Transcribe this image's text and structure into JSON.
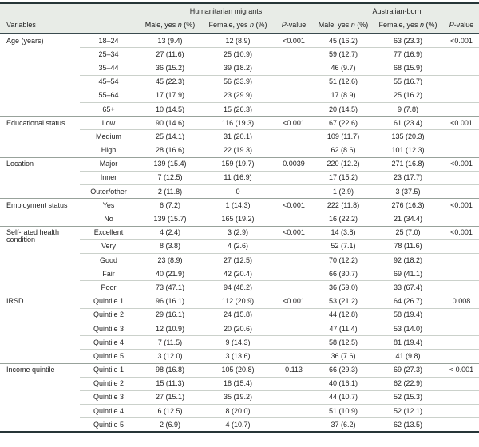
{
  "colors": {
    "header_bg": "#e8ece7",
    "rule_dark": "#263537",
    "rule_header_bottom": "#3a4a4e",
    "row_divider": "#cbd1cb",
    "group_divider": "#98a29b",
    "text": "#222222"
  },
  "table": {
    "variables_label": "Variables",
    "group_headers": [
      "Humanitarian migrants",
      "Australian-born"
    ],
    "sub_headers": [
      {
        "pre": "Male, yes ",
        "it": "n",
        "post": " (%)"
      },
      {
        "pre": "Female, yes ",
        "it": "n",
        "post": " (%)"
      },
      {
        "pre": "",
        "it": "P",
        "post": "-value"
      },
      {
        "pre": "Male, yes ",
        "it": "n",
        "post": " (%)"
      },
      {
        "pre": "Female, yes ",
        "it": "n",
        "post": " (%)"
      },
      {
        "pre": "",
        "it": "P",
        "post": "-value"
      }
    ],
    "groups": [
      {
        "variable": "Age (years)",
        "rows": [
          {
            "category": "18–24",
            "cells": [
              "13 (9.4)",
              "12 (8.9)",
              "<0.001",
              "45 (16.2)",
              "63 (23.3)",
              "<0.001"
            ]
          },
          {
            "category": "25–34",
            "cells": [
              "27 (11.6)",
              "25 (10.9)",
              "",
              "59 (12.7)",
              "77 (16.9)",
              ""
            ]
          },
          {
            "category": "35–44",
            "cells": [
              "36 (15.2)",
              "39 (18.2)",
              "",
              "46 (9.7)",
              "68 (15.9)",
              ""
            ]
          },
          {
            "category": "45–54",
            "cells": [
              "45 (22.3)",
              "56 (33.9)",
              "",
              "51 (12.6)",
              "55 (16.7)",
              ""
            ]
          },
          {
            "category": "55–64",
            "cells": [
              "17 (17.9)",
              "23 (29.9)",
              "",
              "17 (8.9)",
              "25 (16.2)",
              ""
            ]
          },
          {
            "category": "65+",
            "cells": [
              "10 (14.5)",
              "15 (26.3)",
              "",
              "20 (14.5)",
              "9 (7.8)",
              ""
            ]
          }
        ]
      },
      {
        "variable": "Educational status",
        "rows": [
          {
            "category": "Low",
            "cells": [
              "90 (14.6)",
              "116 (19.3)",
              "<0.001",
              "67 (22.6)",
              "61 (23.4)",
              "<0.001"
            ]
          },
          {
            "category": "Medium",
            "cells": [
              "25 (14.1)",
              "31 (20.1)",
              "",
              "109 (11.7)",
              "135 (20.3)",
              ""
            ]
          },
          {
            "category": "High",
            "cells": [
              "28 (16.6)",
              "22 (19.3)",
              "",
              "62 (8.6)",
              "101 (12.3)",
              ""
            ]
          }
        ]
      },
      {
        "variable": "Location",
        "rows": [
          {
            "category": "Major",
            "cells": [
              "139 (15.4)",
              "159 (19.7)",
              "0.0039",
              "220 (12.2)",
              "271 (16.8)",
              "<0.001"
            ]
          },
          {
            "category": "Inner",
            "cells": [
              "7 (12.5)",
              "11 (16.9)",
              "",
              "17 (15.2)",
              "23 (17.7)",
              ""
            ]
          },
          {
            "category": "Outer/other",
            "cells": [
              "2 (11.8)",
              "0",
              "",
              "1 (2.9)",
              "3 (37.5)",
              ""
            ]
          }
        ]
      },
      {
        "variable": "Employment status",
        "rows": [
          {
            "category": "Yes",
            "cells": [
              "6 (7.2)",
              "1 (14.3)",
              "<0.001",
              "222 (11.8)",
              "276 (16.3)",
              "<0.001"
            ]
          },
          {
            "category": "No",
            "cells": [
              "139 (15.7)",
              "165 (19.2)",
              "",
              "16 (22.2)",
              "21 (34.4)",
              ""
            ]
          }
        ]
      },
      {
        "variable": "Self-rated health condition",
        "rows": [
          {
            "category": "Excellent",
            "cells": [
              "4 (2.4)",
              "3 (2.9)",
              "<0.001",
              "14 (3.8)",
              "25 (7.0)",
              "<0.001"
            ]
          },
          {
            "category": "Very",
            "cells": [
              "8 (3.8)",
              "4 (2.6)",
              "",
              "52 (7.1)",
              "78 (11.6)",
              ""
            ]
          },
          {
            "category": "Good",
            "cells": [
              "23 (8.9)",
              "27 (12.5)",
              "",
              "70 (12.2)",
              "92 (18.2)",
              ""
            ]
          },
          {
            "category": "Fair",
            "cells": [
              "40 (21.9)",
              "42 (20.4)",
              "",
              "66 (30.7)",
              "69 (41.1)",
              ""
            ]
          },
          {
            "category": "Poor",
            "cells": [
              "73 (47.1)",
              "94 (48.2)",
              "",
              "36 (59.0)",
              "33 (67.4)",
              ""
            ]
          }
        ]
      },
      {
        "variable": "IRSD",
        "rows": [
          {
            "category": "Quintile 1",
            "cells": [
              "96 (16.1)",
              "112 (20.9)",
              "<0.001",
              "53 (21.2)",
              "64 (26.7)",
              "0.008"
            ]
          },
          {
            "category": "Quintile 2",
            "cells": [
              "29 (16.1)",
              "24 (15.8)",
              "",
              "44 (12.8)",
              "58 (19.4)",
              ""
            ]
          },
          {
            "category": "Quintile 3",
            "cells": [
              "12 (10.9)",
              "20 (20.6)",
              "",
              "47 (11.4)",
              "53 (14.0)",
              ""
            ]
          },
          {
            "category": "Quintile 4",
            "cells": [
              "7 (11.5)",
              "9 (14.3)",
              "",
              "58 (12.5)",
              "81 (19.4)",
              ""
            ]
          },
          {
            "category": "Quintile 5",
            "cells": [
              "3 (12.0)",
              "3 (13.6)",
              "",
              "36 (7.6)",
              "41 (9.8)",
              ""
            ]
          }
        ]
      },
      {
        "variable": "Income quintile",
        "rows": [
          {
            "category": "Quintile 1",
            "cells": [
              "98 (16.8)",
              "105 (20.8)",
              "0.113",
              "66 (29.3)",
              "69 (27.3)",
              "< 0.001"
            ]
          },
          {
            "category": "Quintile 2",
            "cells": [
              "15 (11.3)",
              "18 (15.4)",
              "",
              "40 (16.1)",
              "62 (22.9)",
              ""
            ]
          },
          {
            "category": "Quintile 3",
            "cells": [
              "27 (15.1)",
              "35 (19.2)",
              "",
              "44 (10.7)",
              "52 (15.3)",
              ""
            ]
          },
          {
            "category": "Quintile 4",
            "cells": [
              "6 (12.5)",
              "8 (20.0)",
              "",
              "51 (10.9)",
              "52 (12.1)",
              ""
            ]
          },
          {
            "category": "Quintile 5",
            "cells": [
              "2 (6.9)",
              "4 (10.7)",
              "",
              "37 (6.2)",
              "62 (13.5)",
              ""
            ]
          }
        ]
      }
    ]
  }
}
